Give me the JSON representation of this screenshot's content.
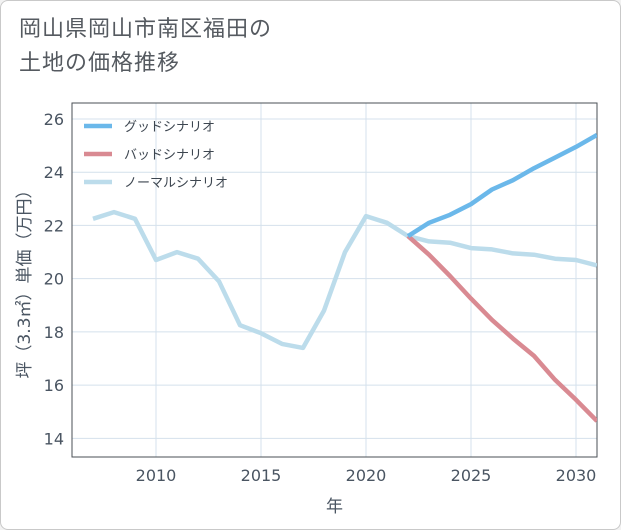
{
  "chart_data": {
    "type": "line",
    "title_line1": "岡山県岡山市南区福田の",
    "title_line2": "土地の価格推移",
    "xlabel": "年",
    "ylabel": "坪（3.3㎡）単価（万円）",
    "xlim": [
      2006,
      2031
    ],
    "ylim": [
      13.3,
      26.6
    ],
    "xticks": [
      2010,
      2015,
      2020,
      2025,
      2030
    ],
    "yticks": [
      14,
      16,
      18,
      20,
      22,
      24,
      26
    ],
    "grid": true,
    "legend_position": "top-left",
    "series": [
      {
        "name": "グッドシナリオ",
        "color": "#6bb8ea",
        "x": [
          2022,
          2023,
          2024,
          2025,
          2026,
          2027,
          2028,
          2029,
          2030,
          2031
        ],
        "y": [
          21.6,
          22.1,
          22.4,
          22.8,
          23.35,
          23.7,
          24.15,
          24.55,
          24.95,
          25.4
        ]
      },
      {
        "name": "バッドシナリオ",
        "color": "#d98a92",
        "x": [
          2022,
          2023,
          2024,
          2025,
          2026,
          2027,
          2028,
          2029,
          2030,
          2031
        ],
        "y": [
          21.6,
          20.9,
          20.1,
          19.25,
          18.45,
          17.75,
          17.1,
          16.2,
          15.45,
          14.65
        ]
      },
      {
        "name": "ノーマルシナリオ",
        "color": "#bcdceb",
        "x": [
          2007,
          2008,
          2009,
          2010,
          2011,
          2012,
          2013,
          2014,
          2015,
          2016,
          2017,
          2018,
          2019,
          2020,
          2021,
          2022,
          2023,
          2024,
          2025,
          2026,
          2027,
          2028,
          2029,
          2030,
          2031
        ],
        "y": [
          22.25,
          22.5,
          22.25,
          20.7,
          21.0,
          20.75,
          19.9,
          18.25,
          17.95,
          17.55,
          17.4,
          18.8,
          21.0,
          22.35,
          22.1,
          21.6,
          21.4,
          21.35,
          21.15,
          21.1,
          20.95,
          20.9,
          20.75,
          20.7,
          20.5
        ]
      }
    ]
  }
}
